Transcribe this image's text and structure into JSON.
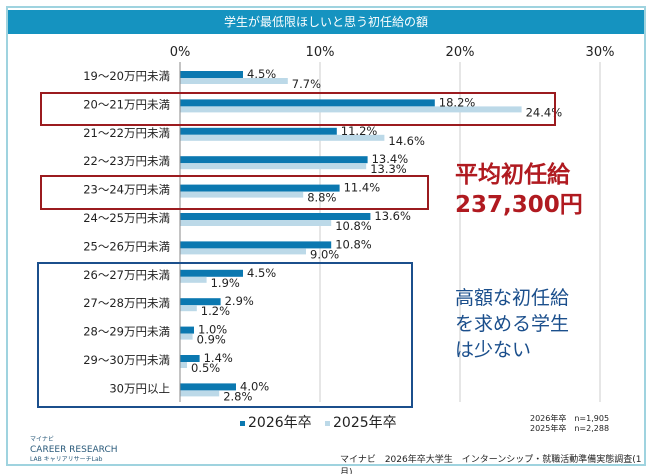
{
  "chart_data": {
    "type": "bar",
    "orientation": "horizontal",
    "title": "学生が最低限ほしいと思う初任給の額",
    "categories": [
      "19～20万円未満",
      "20～21万円未満",
      "21～22万円未満",
      "22～23万円未満",
      "23～24万円未満",
      "24～25万円未満",
      "25～26万円未満",
      "26～27万円未満",
      "27～28万円未満",
      "28～29万円未満",
      "29～30万円未満",
      "30万円以上"
    ],
    "series": [
      {
        "name": "2026年卒",
        "color": "#0b78b0",
        "values": [
          4.5,
          18.2,
          11.2,
          13.4,
          11.4,
          13.6,
          10.8,
          4.5,
          2.9,
          1.0,
          1.4,
          4.0
        ]
      },
      {
        "name": "2025年卒",
        "color": "#bcd9e8",
        "values": [
          7.7,
          24.4,
          14.6,
          13.3,
          8.8,
          10.8,
          9.0,
          1.9,
          1.2,
          0.9,
          0.5,
          2.8
        ]
      }
    ],
    "xlim": [
      0,
      30
    ],
    "xticks": [
      "0%",
      "10%",
      "20%",
      "30%"
    ],
    "grid": true,
    "legend_position": "bottom",
    "highlight_colors": {
      "red": "#9b1b1f",
      "blue": "#1b4f8c"
    }
  },
  "annotations": {
    "avg_label": "平均初任給",
    "avg_value": "237,300円",
    "note_lines": [
      "高額な初任給",
      "を求める学生",
      "は少ない"
    ]
  },
  "sample_sizes": [
    "2026年卒　n=1,905",
    "2025年卒　n=2,288"
  ],
  "source": "マイナビ　2026年卒大学生　インターンシップ・就職活動準備実態調査(1月)",
  "logo": {
    "top": "マイナビ",
    "name": "CAREER RESEARCH",
    "sub": "LAB キャリアリサーチLab"
  }
}
